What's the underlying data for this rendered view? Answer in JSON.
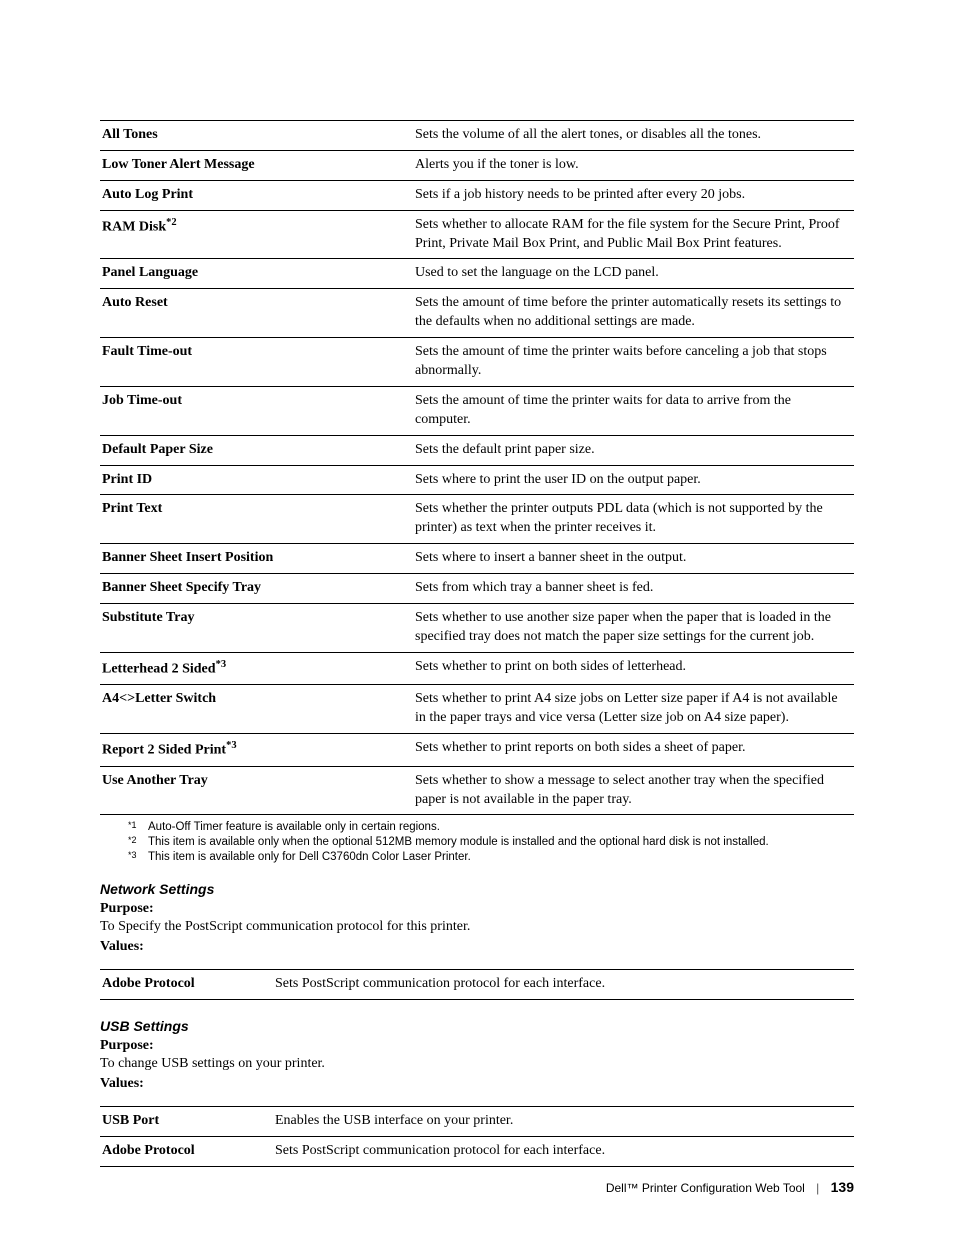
{
  "table1": {
    "rows": [
      {
        "label": "All Tones",
        "desc": "Sets the volume of all the alert tones, or disables all the tones."
      },
      {
        "label": "Low Toner Alert Message",
        "desc": "Alerts you if the toner is low."
      },
      {
        "label": "Auto Log Print",
        "desc": "Sets if a job history needs to be printed after every 20 jobs."
      },
      {
        "label": "RAM Disk",
        "sup": "*2",
        "desc": "Sets whether to allocate RAM for the file system for the Secure Print, Proof Print, Private Mail Box Print, and Public Mail Box Print features."
      },
      {
        "label": "Panel Language",
        "desc": "Used to set the language on the LCD panel."
      },
      {
        "label": "Auto Reset",
        "desc": "Sets the amount of time before the printer automatically resets its settings to the defaults when no additional settings are made."
      },
      {
        "label": "Fault Time-out",
        "desc": "Sets the amount of time the printer waits before canceling a job that stops abnormally."
      },
      {
        "label": "Job Time-out",
        "desc": "Sets the amount of time the printer waits for data to arrive from the computer."
      },
      {
        "label": "Default Paper Size",
        "desc": "Sets the default print paper size."
      },
      {
        "label": "Print ID",
        "desc": "Sets where to print the user ID on the output paper."
      },
      {
        "label": "Print Text",
        "desc": "Sets whether the printer outputs PDL data (which is not supported by the printer) as text when the printer receives it."
      },
      {
        "label": "Banner Sheet Insert Position",
        "desc": "Sets where to insert a banner sheet in the output."
      },
      {
        "label": "Banner Sheet Specify Tray",
        "desc": "Sets from which tray a banner sheet is fed."
      },
      {
        "label": "Substitute Tray",
        "desc": "Sets whether to use another size paper when the paper that is loaded in the specified tray does not match the paper size settings for the current job."
      },
      {
        "label": "Letterhead 2 Sided",
        "sup": "*3",
        "desc": "Sets whether to print on both sides of letterhead."
      },
      {
        "label": "A4<>Letter Switch",
        "desc": "Sets whether to print A4 size jobs on Letter size paper if A4 is not available in the paper trays and vice versa (Letter size job on A4 size paper)."
      },
      {
        "label": "Report 2 Sided Print",
        "sup": "*3",
        "desc": "Sets whether to print reports on both sides a sheet of paper."
      },
      {
        "label": "Use Another Tray",
        "desc": "Sets whether to show a message to select another tray when the specified paper is not available in the paper tray."
      }
    ]
  },
  "footnotes": [
    {
      "mark": "*1",
      "text": "Auto-Off Timer feature is available only in certain regions."
    },
    {
      "mark": "*2",
      "text": "This item is available only when the optional 512MB memory module is installed and the optional hard disk is not installed."
    },
    {
      "mark": "*3",
      "text": "This item is available only for Dell C3760dn Color Laser Printer."
    }
  ],
  "network": {
    "heading": "Network Settings",
    "purpose_label": "Purpose:",
    "purpose_text": "To Specify the PostScript communication protocol for this printer.",
    "values_label": "Values:",
    "rows": [
      {
        "label": "Adobe Protocol",
        "desc": "Sets PostScript communication protocol for each interface."
      }
    ]
  },
  "usb": {
    "heading": "USB Settings",
    "purpose_label": "Purpose:",
    "purpose_text": "To change USB settings on your printer.",
    "values_label": "Values:",
    "rows": [
      {
        "label": "USB Port",
        "desc": "Enables the USB interface on your printer."
      },
      {
        "label": "Adobe Protocol",
        "desc": "Sets PostScript communication protocol for each interface."
      }
    ]
  },
  "footer": {
    "title": "Dell™ Printer Configuration Web Tool",
    "page": "139"
  }
}
